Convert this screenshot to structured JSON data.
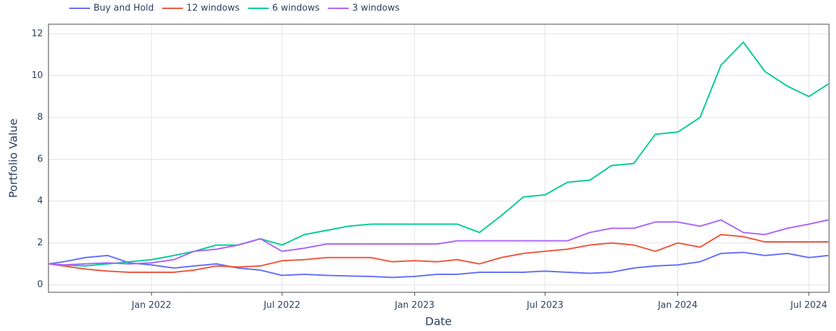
{
  "chart_data": {
    "type": "line",
    "xlabel": "Date",
    "ylabel": "Portfolio Value",
    "legend": "top-left",
    "grid": true,
    "x": [
      "2021-08-11",
      "2021-09-01",
      "2021-10-01",
      "2021-11-01",
      "2021-12-01",
      "2022-01-01",
      "2022-02-01",
      "2022-03-01",
      "2022-04-01",
      "2022-05-01",
      "2022-06-01",
      "2022-07-01",
      "2022-08-01",
      "2022-09-01",
      "2022-10-01",
      "2022-11-01",
      "2022-12-01",
      "2023-01-01",
      "2023-02-01",
      "2023-03-01",
      "2023-04-01",
      "2023-05-01",
      "2023-06-01",
      "2023-07-01",
      "2023-08-01",
      "2023-09-01",
      "2023-10-01",
      "2023-11-01",
      "2023-12-01",
      "2024-01-01",
      "2024-02-01",
      "2024-03-01",
      "2024-04-01",
      "2024-05-01",
      "2024-06-01",
      "2024-07-01",
      "2024-07-28"
    ],
    "xlim": [
      "2021-08-11",
      "2024-07-29"
    ],
    "xticks": [
      {
        "value": "2022-01-01",
        "label": "Jan 2022"
      },
      {
        "value": "2022-07-01",
        "label": "Jul 2022"
      },
      {
        "value": "2023-01-01",
        "label": "Jan 2023"
      },
      {
        "value": "2023-07-01",
        "label": "Jul 2023"
      },
      {
        "value": "2024-01-01",
        "label": "Jan 2024"
      },
      {
        "value": "2024-07-01",
        "label": "Jul 2024"
      }
    ],
    "ylim": [
      -0.36,
      12.46
    ],
    "yticks": [
      0,
      2,
      4,
      6,
      8,
      10,
      12
    ],
    "series": [
      {
        "name": "Buy and Hold",
        "color": "#636efa",
        "values": [
          1.0,
          1.1,
          1.3,
          1.4,
          1.05,
          0.95,
          0.8,
          0.9,
          1.0,
          0.8,
          0.7,
          0.45,
          0.5,
          0.45,
          0.42,
          0.4,
          0.35,
          0.4,
          0.5,
          0.5,
          0.6,
          0.6,
          0.6,
          0.65,
          0.6,
          0.55,
          0.6,
          0.8,
          0.9,
          0.95,
          1.1,
          1.5,
          1.55,
          1.4,
          1.5,
          1.3,
          1.4
        ]
      },
      {
        "name": "12 windows",
        "color": "#EF553B",
        "values": [
          1.0,
          0.9,
          0.75,
          0.65,
          0.6,
          0.6,
          0.6,
          0.7,
          0.9,
          0.85,
          0.9,
          1.15,
          1.2,
          1.3,
          1.3,
          1.3,
          1.1,
          1.15,
          1.1,
          1.2,
          1.0,
          1.3,
          1.5,
          1.6,
          1.7,
          1.9,
          2.0,
          1.9,
          1.6,
          2.0,
          1.8,
          2.4,
          2.3,
          2.05,
          2.05,
          2.05,
          2.05
        ]
      },
      {
        "name": "6 windows",
        "color": "#00cc96",
        "values": [
          1.0,
          0.95,
          0.9,
          1.0,
          1.1,
          1.2,
          1.4,
          1.6,
          1.9,
          1.9,
          2.2,
          1.9,
          2.4,
          2.6,
          2.8,
          2.9,
          2.9,
          2.9,
          2.9,
          2.9,
          2.5,
          3.3,
          4.2,
          4.3,
          4.9,
          5.0,
          5.7,
          5.8,
          7.2,
          7.3,
          8.0,
          10.5,
          11.6,
          10.2,
          9.5,
          9.0,
          9.6
        ]
      },
      {
        "name": "3 windows",
        "color": "#ab63fa",
        "values": [
          1.0,
          0.95,
          1.0,
          1.05,
          1.0,
          1.05,
          1.2,
          1.6,
          1.7,
          1.9,
          2.2,
          1.6,
          1.75,
          1.95,
          1.95,
          1.95,
          1.95,
          1.95,
          1.95,
          2.1,
          2.1,
          2.1,
          2.1,
          2.1,
          2.1,
          2.5,
          2.7,
          2.7,
          3.0,
          3.0,
          2.8,
          3.1,
          2.5,
          2.4,
          2.7,
          2.9,
          3.1
        ]
      }
    ]
  }
}
